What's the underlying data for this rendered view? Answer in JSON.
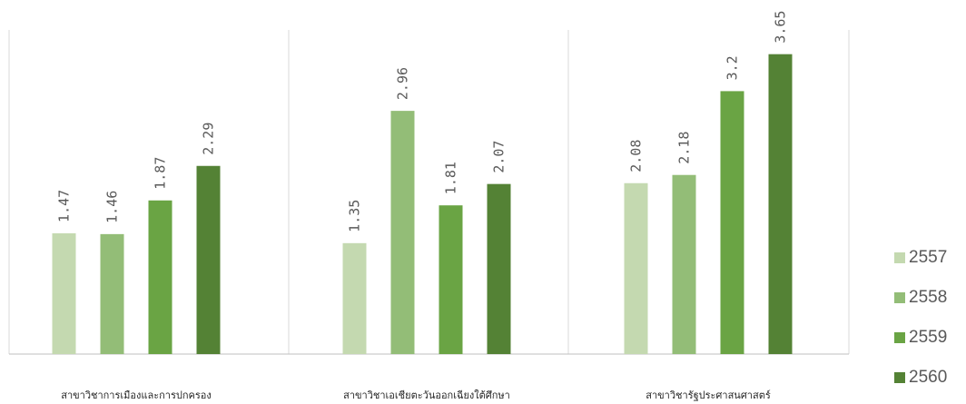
{
  "chart_data": {
    "type": "bar",
    "title": "",
    "xlabel": "",
    "ylabel": "",
    "ylim": [
      0,
      4.2
    ],
    "grid": "vertical category separators",
    "legend_position": "right",
    "categories": [
      "สาขาวิชาการเมืองและการปกครอง",
      "สาขาวิชาเอเชียตะวันออกเฉียงใต้ศึกษา",
      "สาขาวิชารัฐประศาสนศาสตร์"
    ],
    "series": [
      {
        "name": "2557",
        "color": "#c4d9b0",
        "values": [
          1.47,
          1.35,
          2.08
        ],
        "labels": [
          "1.47",
          "1.35",
          "2.08"
        ]
      },
      {
        "name": "2558",
        "color": "#93bd77",
        "values": [
          1.46,
          2.96,
          2.18
        ],
        "labels": [
          "1.46",
          "2.96",
          "2.18"
        ]
      },
      {
        "name": "2559",
        "color": "#6aa444",
        "values": [
          1.87,
          1.81,
          3.2
        ],
        "labels": [
          "1.87",
          "1.81",
          "3.2"
        ]
      },
      {
        "name": "2560",
        "color": "#548235",
        "values": [
          2.29,
          2.07,
          3.65
        ],
        "labels": [
          "2.29",
          "2.07",
          "3.65"
        ]
      }
    ]
  }
}
